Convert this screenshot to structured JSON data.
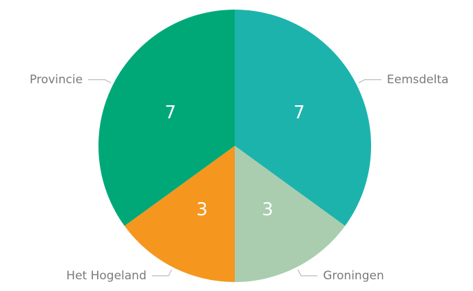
{
  "chart_data": {
    "type": "pie",
    "categories": [
      "Eemsdelta",
      "Groningen",
      "Het Hogeland",
      "Provincie"
    ],
    "values": [
      7,
      3,
      3,
      7
    ],
    "colors": [
      "#1db3ad",
      "#a9cdae",
      "#f5961f",
      "#00a878"
    ]
  }
}
